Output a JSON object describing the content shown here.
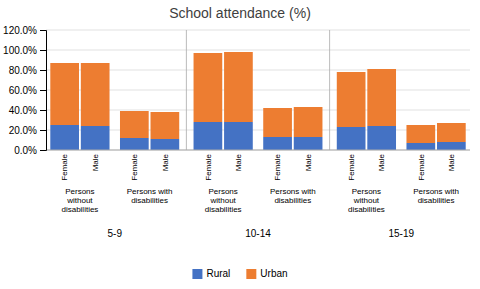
{
  "chart_data": {
    "type": "bar",
    "stacked": true,
    "title": "School attendance (%)",
    "categories": [
      "Female",
      "Male",
      "Female",
      "Male",
      "Female",
      "Male",
      "Female",
      "Male",
      "Female",
      "Male",
      "Female",
      "Male"
    ],
    "subgroups": [
      "Persons\nwithout\ndisabilities",
      "Persons with\ndisabilities",
      "Persons\nwithout\ndisabilities",
      "Persons with\ndisabilities",
      "Persons\nwithout\ndisabilities",
      "Persons with\ndisabilities"
    ],
    "groups": [
      "5-9",
      "10-14",
      "15-19"
    ],
    "series": [
      {
        "name": "Rural",
        "color": "#4472C4",
        "values": [
          25.0,
          24.0,
          12.0,
          11.0,
          28.0,
          28.0,
          13.0,
          13.0,
          23.0,
          24.0,
          7.0,
          8.0
        ]
      },
      {
        "name": "Urban",
        "color": "#ED7D31",
        "values": [
          62.0,
          63.0,
          27.0,
          27.0,
          69.0,
          70.0,
          29.0,
          30.0,
          55.0,
          57.0,
          18.0,
          19.0
        ]
      }
    ],
    "ylim": [
      0,
      120
    ],
    "yticks": [
      {
        "value": 0,
        "label": "0.0%"
      },
      {
        "value": 20,
        "label": "20.0%"
      },
      {
        "value": 40,
        "label": "40.0%"
      },
      {
        "value": 60,
        "label": "60.0%"
      },
      {
        "value": 80,
        "label": "80.0%"
      },
      {
        "value": 100,
        "label": "100.0%"
      },
      {
        "value": 120,
        "label": "120.0%"
      }
    ],
    "grid": true,
    "legend": "bottom"
  }
}
